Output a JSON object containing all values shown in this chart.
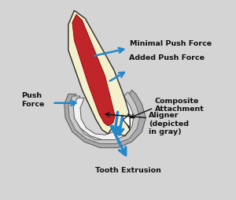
{
  "background_color": "#d4d4d4",
  "tooth_outer_color": "#f5f0cc",
  "tooth_outline_color": "#2a2a2a",
  "tooth_inner_red_color": "#c0252a",
  "tooth_inner_red_edge": "#8b0000",
  "aligner_white_color": "#f0f0f0",
  "aligner_gray_color": "#c0c0c0",
  "aligner_dark_color": "#909090",
  "aligner_edge_color": "#444444",
  "arrow_blue_color": "#2288cc",
  "arrow_black_color": "#111111",
  "labels": {
    "minimal_push": "Minimal Push Force",
    "added_push": "← Added Push Force",
    "composite": "Composite\nAttachment",
    "aligner": "Aligner\n(depicted\nin gray)",
    "tooth_extrusion": "Tooth Extrusion",
    "push_force": "Push\nForce"
  },
  "label_fontsize": 6.8,
  "label_color": "#111111"
}
